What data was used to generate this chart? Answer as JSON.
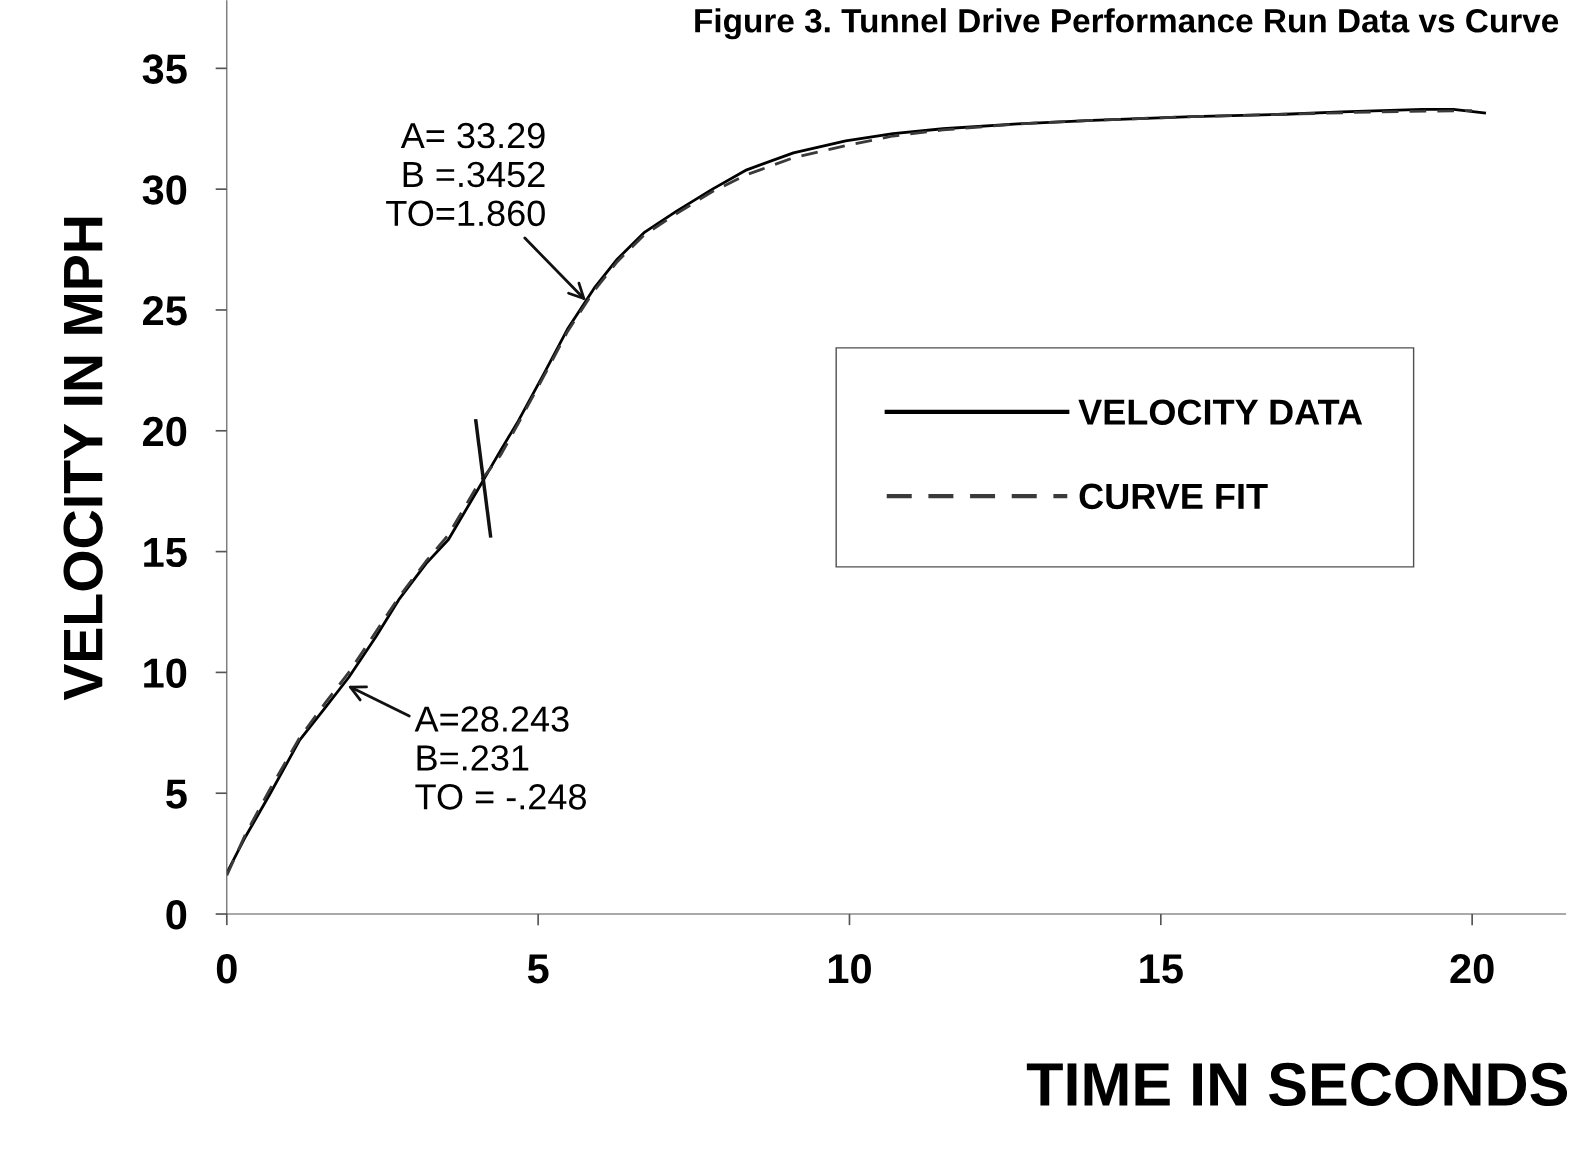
{
  "chart_data": {
    "type": "line",
    "title": "Figure 3. Tunnel Drive Performance Run Data vs Curve",
    "xlabel": "TIME IN SECONDS",
    "ylabel": "VELOCITY IN MPH",
    "series": [
      {
        "name": "VELOCITY DATA",
        "color": "#000000",
        "line_style": "solid",
        "x": [
          0,
          0.3,
          0.7,
          1.17,
          1.6,
          1.96,
          2.4,
          2.76,
          3.2,
          3.56,
          4.04,
          4.4,
          4.68,
          5.1,
          5.47,
          5.9,
          6.27,
          6.7,
          7.23,
          7.8,
          8.35,
          9.1,
          9.94,
          10.7,
          11.5,
          12.7,
          13.9,
          15.5,
          17.0,
          17.9,
          19.2,
          19.7,
          20.2
        ],
        "values": [
          1.7,
          3.2,
          5.0,
          7.2,
          8.6,
          9.8,
          11.5,
          13.0,
          14.5,
          15.5,
          17.6,
          19.2,
          20.4,
          22.4,
          24.2,
          25.9,
          27.1,
          28.2,
          29.1,
          30.0,
          30.8,
          31.5,
          32.0,
          32.3,
          32.5,
          32.7,
          32.85,
          33.0,
          33.1,
          33.2,
          33.3,
          33.3,
          33.15
        ]
      },
      {
        "name": "CURVE FIT",
        "color": "#3a3a3a",
        "line_style": "dashed",
        "x": [
          0,
          0.3,
          0.7,
          1.17,
          1.6,
          1.96,
          2.4,
          2.76,
          3.2,
          3.56,
          4.04,
          4.4,
          4.68,
          5.1,
          5.47,
          5.9,
          6.27,
          6.7,
          7.23,
          7.8,
          8.35,
          9.1,
          9.94,
          10.7,
          11.5,
          12.7,
          13.9,
          15.5,
          17.0,
          18.5,
          20.0
        ],
        "values": [
          1.6,
          3.3,
          5.2,
          7.3,
          8.8,
          10.0,
          11.7,
          13.1,
          14.6,
          15.7,
          17.8,
          19.0,
          20.3,
          22.3,
          24.1,
          25.8,
          27.0,
          28.1,
          29.0,
          29.9,
          30.6,
          31.3,
          31.8,
          32.2,
          32.45,
          32.7,
          32.85,
          33.0,
          33.1,
          33.2,
          33.25
        ]
      }
    ],
    "xlim": [
      0,
      21.5
    ],
    "ylim": [
      0,
      37.8
    ],
    "xticks": [
      0,
      5,
      10,
      15,
      20
    ],
    "yticks": [
      0,
      5,
      10,
      15,
      20,
      25,
      30,
      35
    ],
    "grid": false,
    "legend": "right",
    "annotations": [
      {
        "text": "A= 33.29\nB =.3452\nTO=1.860",
        "x": 5.8,
        "y": 25.3
      },
      {
        "text": "A=28.243\nB=.231\nTO = -.248",
        "x": 1.9,
        "y": 9.5
      }
    ]
  }
}
